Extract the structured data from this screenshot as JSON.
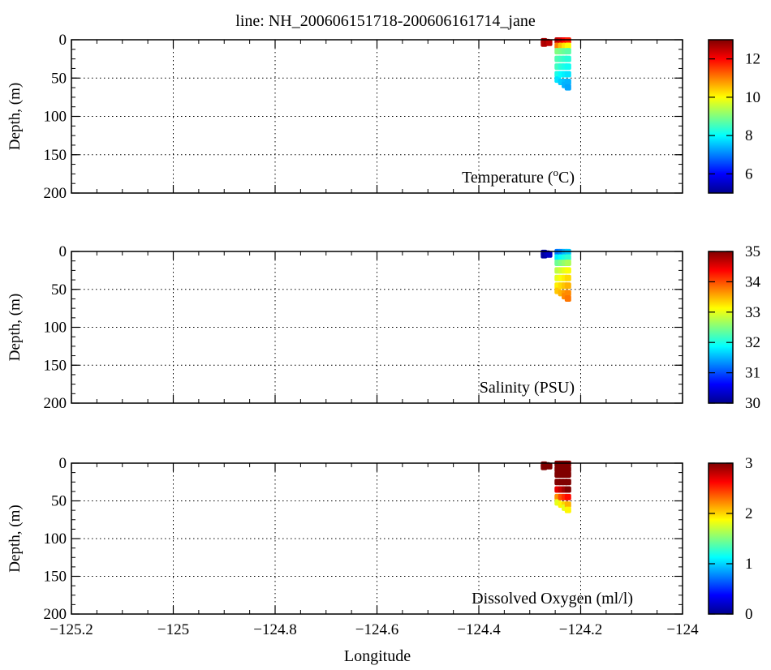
{
  "title": "line: NH_200606151718-200606161714_jane",
  "xlabel": "Longitude",
  "colormap": [
    "#00008f",
    "#0000ff",
    "#0080ff",
    "#00ffff",
    "#80ff80",
    "#ffff00",
    "#ff8000",
    "#ff0000",
    "#800000"
  ],
  "chart_data": [
    {
      "type": "scatter",
      "label": "Temperature (oC)",
      "label_main": "Temperature (",
      "label_sup": "o",
      "label_end": "C)",
      "ylabel": "Depth, (m)",
      "xlim": [
        -125.2,
        -124.0
      ],
      "ylim": [
        0,
        200
      ],
      "y_inverted": true,
      "xticks": [
        -125.2,
        -125,
        -124.8,
        -124.6,
        -124.4,
        -124.2,
        -124
      ],
      "yticks": [
        0,
        50,
        100,
        150,
        200
      ],
      "grid": true,
      "colorbar": {
        "min": 5,
        "max": 13,
        "ticks": [
          6,
          8,
          10,
          12
        ]
      },
      "points": [
        [
          -124.272,
          2,
          12.7
        ],
        [
          -124.272,
          5,
          12.6
        ],
        [
          -124.266,
          3,
          12.7
        ],
        [
          -124.262,
          4,
          12.5
        ],
        [
          -124.245,
          1,
          12.5
        ],
        [
          -124.245,
          8,
          11.0
        ],
        [
          -124.245,
          15,
          9.0
        ],
        [
          -124.245,
          25,
          8.6
        ],
        [
          -124.245,
          35,
          8.5
        ],
        [
          -124.245,
          45,
          8.2
        ],
        [
          -124.245,
          52,
          7.8
        ],
        [
          -124.238,
          1,
          12.3
        ],
        [
          -124.238,
          8,
          10.5
        ],
        [
          -124.238,
          15,
          8.9
        ],
        [
          -124.238,
          25,
          8.5
        ],
        [
          -124.238,
          35,
          8.3
        ],
        [
          -124.238,
          45,
          8.0
        ],
        [
          -124.238,
          55,
          7.6
        ],
        [
          -124.231,
          1,
          12.0
        ],
        [
          -124.231,
          8,
          10.2
        ],
        [
          -124.231,
          15,
          8.8
        ],
        [
          -124.231,
          25,
          8.4
        ],
        [
          -124.231,
          35,
          8.2
        ],
        [
          -124.231,
          45,
          7.9
        ],
        [
          -124.231,
          55,
          7.5
        ],
        [
          -124.231,
          59,
          7.4
        ],
        [
          -124.225,
          1,
          11.8
        ],
        [
          -124.225,
          8,
          10.0
        ],
        [
          -124.225,
          15,
          8.7
        ],
        [
          -124.225,
          25,
          8.3
        ],
        [
          -124.225,
          35,
          8.1
        ],
        [
          -124.225,
          45,
          7.8
        ],
        [
          -124.225,
          55,
          7.4
        ],
        [
          -124.225,
          62,
          7.3
        ]
      ]
    },
    {
      "type": "scatter",
      "label": "Salinity (PSU)",
      "ylabel": "Depth, (m)",
      "xlim": [
        -125.2,
        -124.0
      ],
      "ylim": [
        0,
        200
      ],
      "y_inverted": true,
      "xticks": [
        -125.2,
        -125,
        -124.8,
        -124.6,
        -124.4,
        -124.2,
        -124
      ],
      "yticks": [
        0,
        50,
        100,
        150,
        200
      ],
      "grid": true,
      "colorbar": {
        "min": 30,
        "max": 35,
        "ticks": [
          30,
          31,
          32,
          33,
          34,
          35
        ]
      },
      "points": [
        [
          -124.272,
          2,
          30.1
        ],
        [
          -124.272,
          5,
          30.1
        ],
        [
          -124.266,
          3,
          30.2
        ],
        [
          -124.262,
          4,
          30.3
        ],
        [
          -124.245,
          1,
          31.2
        ],
        [
          -124.245,
          8,
          31.8
        ],
        [
          -124.245,
          15,
          32.4
        ],
        [
          -124.245,
          25,
          32.8
        ],
        [
          -124.245,
          35,
          33.0
        ],
        [
          -124.245,
          45,
          33.2
        ],
        [
          -124.245,
          52,
          33.4
        ],
        [
          -124.238,
          1,
          31.3
        ],
        [
          -124.238,
          8,
          31.9
        ],
        [
          -124.238,
          15,
          32.5
        ],
        [
          -124.238,
          25,
          32.9
        ],
        [
          -124.238,
          35,
          33.1
        ],
        [
          -124.238,
          45,
          33.3
        ],
        [
          -124.238,
          55,
          33.5
        ],
        [
          -124.231,
          1,
          31.5
        ],
        [
          -124.231,
          8,
          32.0
        ],
        [
          -124.231,
          15,
          32.6
        ],
        [
          -124.231,
          25,
          33.0
        ],
        [
          -124.231,
          35,
          33.2
        ],
        [
          -124.231,
          45,
          33.4
        ],
        [
          -124.231,
          55,
          33.6
        ],
        [
          -124.231,
          59,
          33.7
        ],
        [
          -124.225,
          1,
          31.6
        ],
        [
          -124.225,
          8,
          32.1
        ],
        [
          -124.225,
          15,
          32.7
        ],
        [
          -124.225,
          25,
          33.1
        ],
        [
          -124.225,
          35,
          33.3
        ],
        [
          -124.225,
          45,
          33.5
        ],
        [
          -124.225,
          55,
          33.7
        ],
        [
          -124.225,
          62,
          33.8
        ]
      ]
    },
    {
      "type": "scatter",
      "label": "Dissolved Oxygen (ml/l)",
      "ylabel": "Depth, (m)",
      "xlim": [
        -125.2,
        -124.0
      ],
      "ylim": [
        0,
        200
      ],
      "y_inverted": true,
      "xticks": [
        -125.2,
        -125,
        -124.8,
        -124.6,
        -124.4,
        -124.2,
        -124
      ],
      "yticks": [
        0,
        50,
        100,
        150,
        200
      ],
      "grid": true,
      "colorbar": {
        "min": 0,
        "max": 3,
        "ticks": [
          0,
          1,
          2,
          3
        ]
      },
      "points": [
        [
          -124.272,
          2,
          3.0
        ],
        [
          -124.272,
          5,
          3.0
        ],
        [
          -124.266,
          3,
          3.0
        ],
        [
          -124.262,
          4,
          3.0
        ],
        [
          -124.245,
          1,
          3.0
        ],
        [
          -124.245,
          8,
          3.0
        ],
        [
          -124.245,
          15,
          3.0
        ],
        [
          -124.245,
          25,
          3.0
        ],
        [
          -124.245,
          35,
          2.7
        ],
        [
          -124.245,
          45,
          2.2
        ],
        [
          -124.245,
          52,
          1.8
        ],
        [
          -124.238,
          1,
          3.0
        ],
        [
          -124.238,
          8,
          3.0
        ],
        [
          -124.238,
          15,
          3.0
        ],
        [
          -124.238,
          25,
          3.0
        ],
        [
          -124.238,
          35,
          2.8
        ],
        [
          -124.238,
          45,
          2.4
        ],
        [
          -124.238,
          55,
          1.9
        ],
        [
          -124.231,
          1,
          3.0
        ],
        [
          -124.231,
          8,
          3.0
        ],
        [
          -124.231,
          15,
          3.0
        ],
        [
          -124.231,
          25,
          3.0
        ],
        [
          -124.231,
          35,
          2.9
        ],
        [
          -124.231,
          45,
          2.5
        ],
        [
          -124.231,
          55,
          2.0
        ],
        [
          -124.231,
          59,
          1.8
        ],
        [
          -124.225,
          1,
          3.0
        ],
        [
          -124.225,
          8,
          3.0
        ],
        [
          -124.225,
          15,
          3.0
        ],
        [
          -124.225,
          25,
          3.0
        ],
        [
          -124.225,
          35,
          3.0
        ],
        [
          -124.225,
          45,
          2.6
        ],
        [
          -124.225,
          55,
          2.1
        ],
        [
          -124.225,
          62,
          1.9
        ]
      ]
    }
  ]
}
